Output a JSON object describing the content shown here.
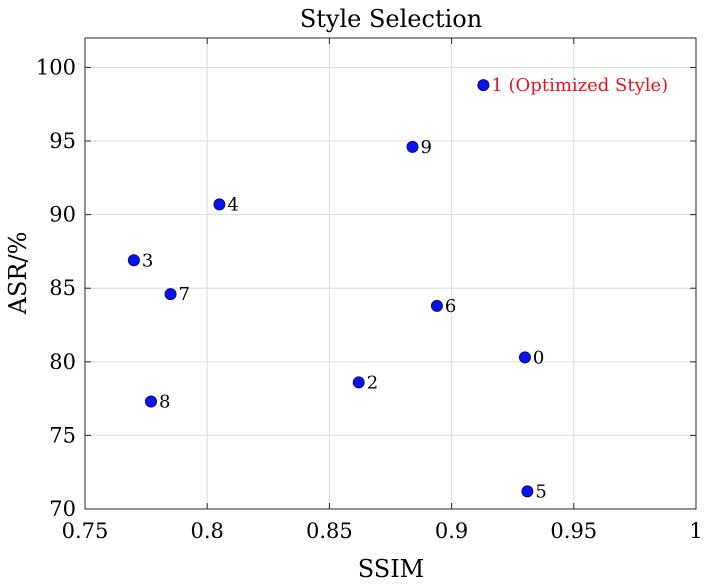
{
  "chart_data": {
    "type": "scatter",
    "title": "Style Selection",
    "xlabel": "SSIM",
    "ylabel": "ASR/%",
    "xlim": [
      0.75,
      1
    ],
    "ylim": [
      70,
      102
    ],
    "xticks": [
      0.75,
      0.8,
      0.85,
      0.9,
      0.95,
      1
    ],
    "yticks": [
      70,
      75,
      80,
      85,
      90,
      95,
      100
    ],
    "xtick_labels": [
      "0.75",
      "0.8",
      "0.85",
      "0.9",
      "0.95",
      "1"
    ],
    "ytick_labels": [
      "70",
      "75",
      "80",
      "85",
      "90",
      "95",
      "100"
    ],
    "grid": true,
    "points": [
      {
        "label": "1 (Optimized Style)",
        "x": 0.913,
        "y": 98.8,
        "highlight": true
      },
      {
        "label": "9",
        "x": 0.884,
        "y": 94.6
      },
      {
        "label": "4",
        "x": 0.805,
        "y": 90.7
      },
      {
        "label": "3",
        "x": 0.77,
        "y": 86.9
      },
      {
        "label": "7",
        "x": 0.785,
        "y": 84.6
      },
      {
        "label": "6",
        "x": 0.894,
        "y": 83.8
      },
      {
        "label": "0",
        "x": 0.93,
        "y": 80.3
      },
      {
        "label": "2",
        "x": 0.862,
        "y": 78.6
      },
      {
        "label": "8",
        "x": 0.777,
        "y": 77.3
      },
      {
        "label": "5",
        "x": 0.931,
        "y": 71.2
      }
    ],
    "colors": {
      "marker_fill": "#0a14f0",
      "marker_edge": "#0a0a6a",
      "highlight_label": "#e8141c",
      "grid": "#dcdcdc",
      "axis": "#262626"
    }
  }
}
